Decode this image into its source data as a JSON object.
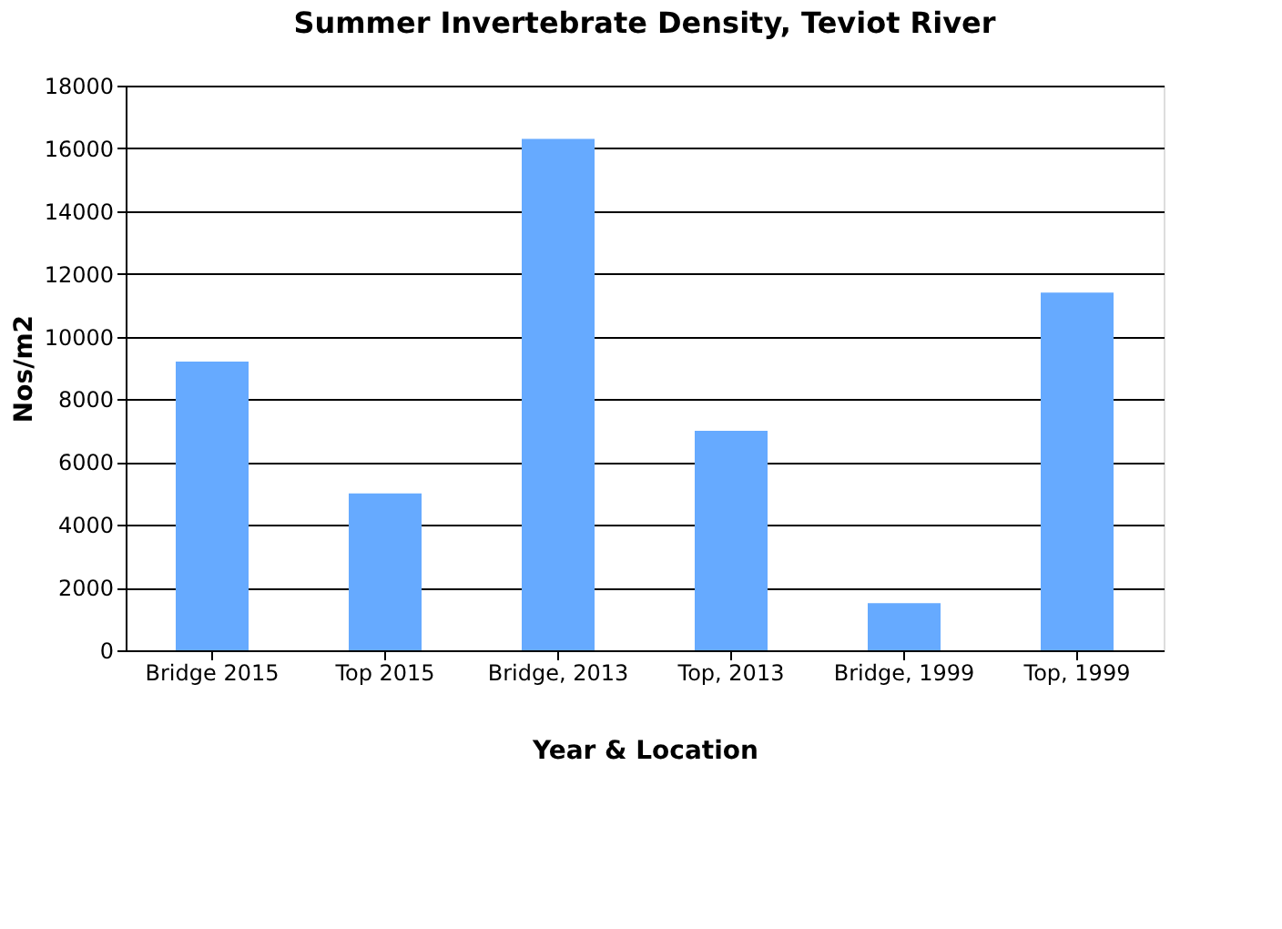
{
  "chart_data": {
    "type": "bar",
    "title": "Summer Invertebrate Density, Teviot River",
    "xlabel": "Year & Location",
    "ylabel": "Nos/m2",
    "categories": [
      "Bridge 2015",
      "Top 2015",
      "Bridge, 2013",
      "Top, 2013",
      "Bridge, 1999",
      "Top, 1999"
    ],
    "values": [
      9200,
      5000,
      16300,
      7000,
      1500,
      11400
    ],
    "color": "#66aaff",
    "ylim": [
      0,
      18000
    ],
    "yticks": [
      0,
      2000,
      4000,
      6000,
      8000,
      10000,
      12000,
      14000,
      16000,
      18000
    ],
    "grid": "y"
  }
}
